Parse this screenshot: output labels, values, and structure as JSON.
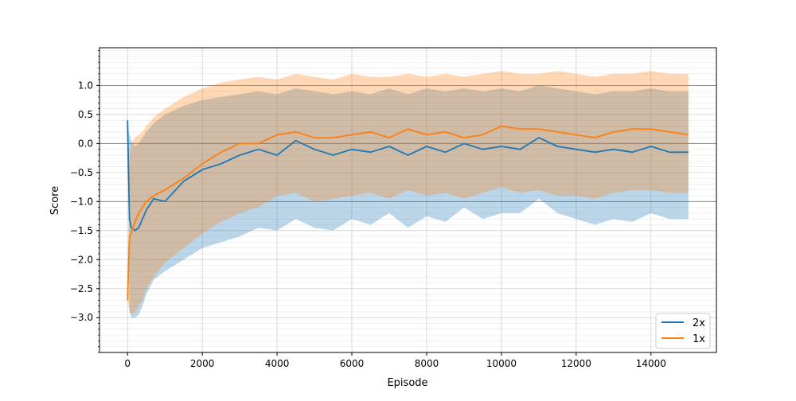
{
  "chart_data": {
    "type": "line",
    "title": "",
    "xlabel": "Episode",
    "ylabel": "Score",
    "xlim": [
      -750,
      15750
    ],
    "ylim": [
      -3.6,
      1.65
    ],
    "x_ticks": [
      0,
      2000,
      4000,
      6000,
      8000,
      10000,
      12000,
      14000
    ],
    "x_tick_labels": [
      "0",
      "2000",
      "4000",
      "6000",
      "8000",
      "10000",
      "12000",
      "14000"
    ],
    "y_ticks": [
      1.0,
      0.5,
      0.0,
      -0.5,
      -1.0,
      -1.5,
      -2.0,
      -2.5,
      -3.0
    ],
    "y_tick_labels": [
      "1.0",
      "0.5",
      "0.0",
      "−0.5",
      "−1.0",
      "−1.5",
      "−2.0",
      "−2.5",
      "−3.0"
    ],
    "y_reference_lines": [
      1.0,
      0.0,
      -1.0
    ],
    "grid": true,
    "minor_grid": true,
    "legend": {
      "position": "lower-right",
      "entries": [
        "2x",
        "1x"
      ]
    },
    "x": [
      0,
      50,
      100,
      200,
      300,
      400,
      500,
      700,
      1000,
      1500,
      2000,
      2500,
      3000,
      3500,
      4000,
      4500,
      5000,
      5500,
      6000,
      6500,
      7000,
      7500,
      8000,
      8500,
      9000,
      9500,
      10000,
      10500,
      11000,
      11500,
      12000,
      12500,
      13000,
      13500,
      14000,
      14500,
      15000
    ],
    "series": [
      {
        "name": "2x",
        "color": "#1f77b4",
        "band_color": "#1f77b4",
        "band_opacity": 0.3,
        "values": [
          0.4,
          -1.3,
          -1.45,
          -1.5,
          -1.45,
          -1.3,
          -1.15,
          -0.95,
          -1.0,
          -0.65,
          -0.45,
          -0.35,
          -0.2,
          -0.1,
          -0.2,
          0.05,
          -0.1,
          -0.2,
          -0.1,
          -0.15,
          -0.05,
          -0.2,
          -0.05,
          -0.15,
          0.0,
          -0.1,
          -0.05,
          -0.1,
          0.1,
          -0.05,
          -0.1,
          -0.15,
          -0.1,
          -0.15,
          -0.05,
          -0.15,
          -0.15
        ],
        "upper": [
          0.4,
          0.15,
          0.05,
          -0.05,
          0.0,
          0.1,
          0.2,
          0.35,
          0.5,
          0.65,
          0.75,
          0.8,
          0.85,
          0.9,
          0.85,
          0.95,
          0.9,
          0.85,
          0.9,
          0.85,
          0.95,
          0.85,
          0.95,
          0.9,
          0.95,
          0.9,
          0.95,
          0.9,
          1.0,
          0.95,
          0.9,
          0.85,
          0.9,
          0.9,
          0.95,
          0.9,
          0.9
        ],
        "lower": [
          0.4,
          -2.9,
          -3.0,
          -3.0,
          -2.95,
          -2.8,
          -2.6,
          -2.35,
          -2.2,
          -2.0,
          -1.8,
          -1.7,
          -1.6,
          -1.45,
          -1.5,
          -1.3,
          -1.45,
          -1.5,
          -1.3,
          -1.4,
          -1.2,
          -1.45,
          -1.25,
          -1.35,
          -1.1,
          -1.3,
          -1.2,
          -1.2,
          -0.95,
          -1.2,
          -1.3,
          -1.4,
          -1.3,
          -1.35,
          -1.2,
          -1.3,
          -1.3
        ]
      },
      {
        "name": "1x",
        "color": "#ff7f0e",
        "band_color": "#ff7f0e",
        "band_opacity": 0.3,
        "values": [
          -2.7,
          -1.6,
          -1.55,
          -1.35,
          -1.2,
          -1.1,
          -1.0,
          -0.9,
          -0.8,
          -0.6,
          -0.35,
          -0.15,
          0.0,
          0.0,
          0.15,
          0.2,
          0.1,
          0.1,
          0.15,
          0.2,
          0.1,
          0.25,
          0.15,
          0.2,
          0.1,
          0.15,
          0.3,
          0.25,
          0.25,
          0.2,
          0.15,
          0.1,
          0.2,
          0.25,
          0.25,
          0.2,
          0.15
        ],
        "upper": [
          -2.7,
          -0.2,
          0.0,
          0.1,
          0.15,
          0.2,
          0.3,
          0.45,
          0.6,
          0.8,
          0.95,
          1.05,
          1.1,
          1.15,
          1.1,
          1.2,
          1.15,
          1.1,
          1.2,
          1.15,
          1.15,
          1.2,
          1.15,
          1.2,
          1.15,
          1.2,
          1.25,
          1.2,
          1.2,
          1.25,
          1.2,
          1.15,
          1.2,
          1.2,
          1.25,
          1.2,
          1.2
        ],
        "lower": [
          -2.7,
          -2.9,
          -2.95,
          -2.9,
          -2.8,
          -2.7,
          -2.5,
          -2.3,
          -2.05,
          -1.8,
          -1.55,
          -1.35,
          -1.2,
          -1.1,
          -0.9,
          -0.85,
          -1.0,
          -0.95,
          -0.9,
          -0.85,
          -0.95,
          -0.8,
          -0.9,
          -0.85,
          -0.95,
          -0.85,
          -0.75,
          -0.85,
          -0.8,
          -0.9,
          -0.9,
          -0.95,
          -0.85,
          -0.8,
          -0.8,
          -0.85,
          -0.85
        ]
      }
    ]
  }
}
